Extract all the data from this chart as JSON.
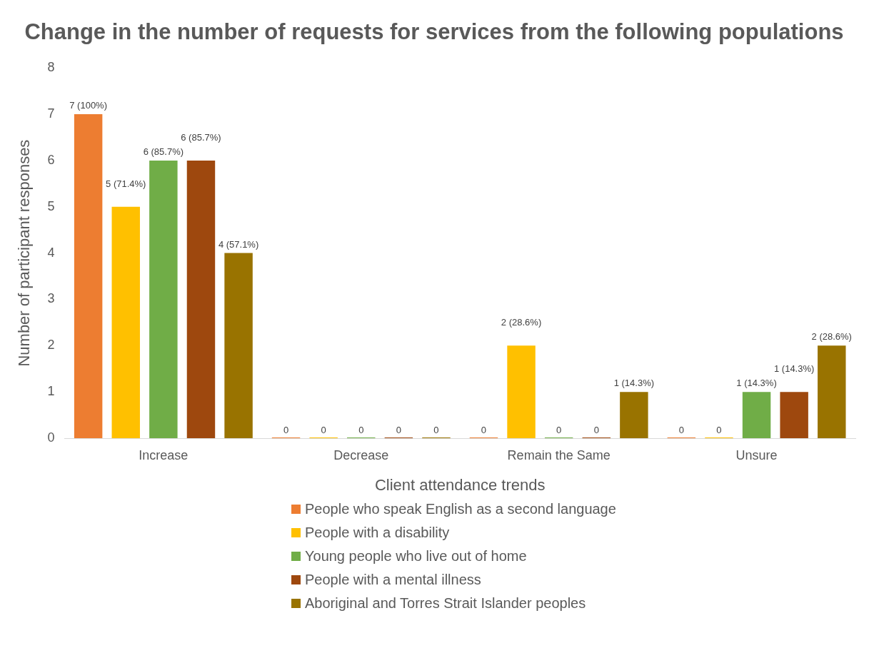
{
  "chart_data": {
    "type": "bar",
    "title": "Change in the number of requests for services from the following populations",
    "xlabel": "Client attendance trends",
    "ylabel": "Number of participant responses",
    "categories": [
      "Increase",
      "Decrease",
      "Remain the Same",
      "Unsure"
    ],
    "series": [
      {
        "name": "People who speak English as a second language",
        "color": "#ed7d31",
        "values": [
          7,
          0,
          0,
          0
        ],
        "value_labels": [
          "7 (100%)",
          "0",
          "0",
          "0"
        ]
      },
      {
        "name": "People with a disability",
        "color": "#ffc000",
        "values": [
          5,
          0,
          2,
          0
        ],
        "value_labels": [
          "5 (71.4%)",
          "0",
          "2 (28.6%)",
          "0"
        ]
      },
      {
        "name": "Young people who live out of home",
        "color": "#70ad47",
        "values": [
          6,
          0,
          0,
          1
        ],
        "value_labels": [
          "6 (85.7%)",
          "0",
          "0",
          "1 (14.3%)"
        ]
      },
      {
        "name": "People with a mental illness",
        "color": "#9e480e",
        "values": [
          6,
          0,
          0,
          1
        ],
        "value_labels": [
          "6 (85.7%)",
          "0",
          "0",
          "1 (14.3%)"
        ]
      },
      {
        "name": "Aboriginal and Torres Strait Islander peoples",
        "color": "#997300",
        "values": [
          4,
          0,
          1,
          2
        ],
        "value_labels": [
          "4 (57.1%)",
          "0",
          "1 (14.3%)",
          "2 (28.6%)"
        ]
      }
    ],
    "ylim": [
      0,
      8
    ],
    "yticks": [
      0,
      1,
      2,
      3,
      4,
      5,
      6,
      7,
      8
    ],
    "grid": false,
    "legend": "bottom"
  }
}
